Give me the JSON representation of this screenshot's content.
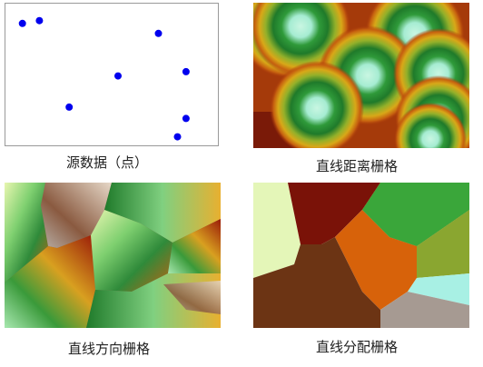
{
  "panels": {
    "source": {
      "caption": "源数据（点）",
      "point_color": "#0000ee",
      "points": [
        {
          "x": 0.08,
          "y": 0.14
        },
        {
          "x": 0.16,
          "y": 0.12
        },
        {
          "x": 0.72,
          "y": 0.21
        },
        {
          "x": 0.53,
          "y": 0.51
        },
        {
          "x": 0.85,
          "y": 0.48
        },
        {
          "x": 0.3,
          "y": 0.73
        },
        {
          "x": 0.85,
          "y": 0.81
        },
        {
          "x": 0.81,
          "y": 0.94
        }
      ]
    },
    "distance": {
      "caption": "直线距离栅格"
    },
    "direction": {
      "caption": "直线方向栅格"
    },
    "allocation": {
      "caption": "直线分配栅格",
      "zone_colors": [
        "#e4f6b8",
        "#7a1208",
        "#d7620a",
        "#3aa63a",
        "#8aa630",
        "#a8f0e4",
        "#a69a92",
        "#6c3414"
      ]
    }
  }
}
